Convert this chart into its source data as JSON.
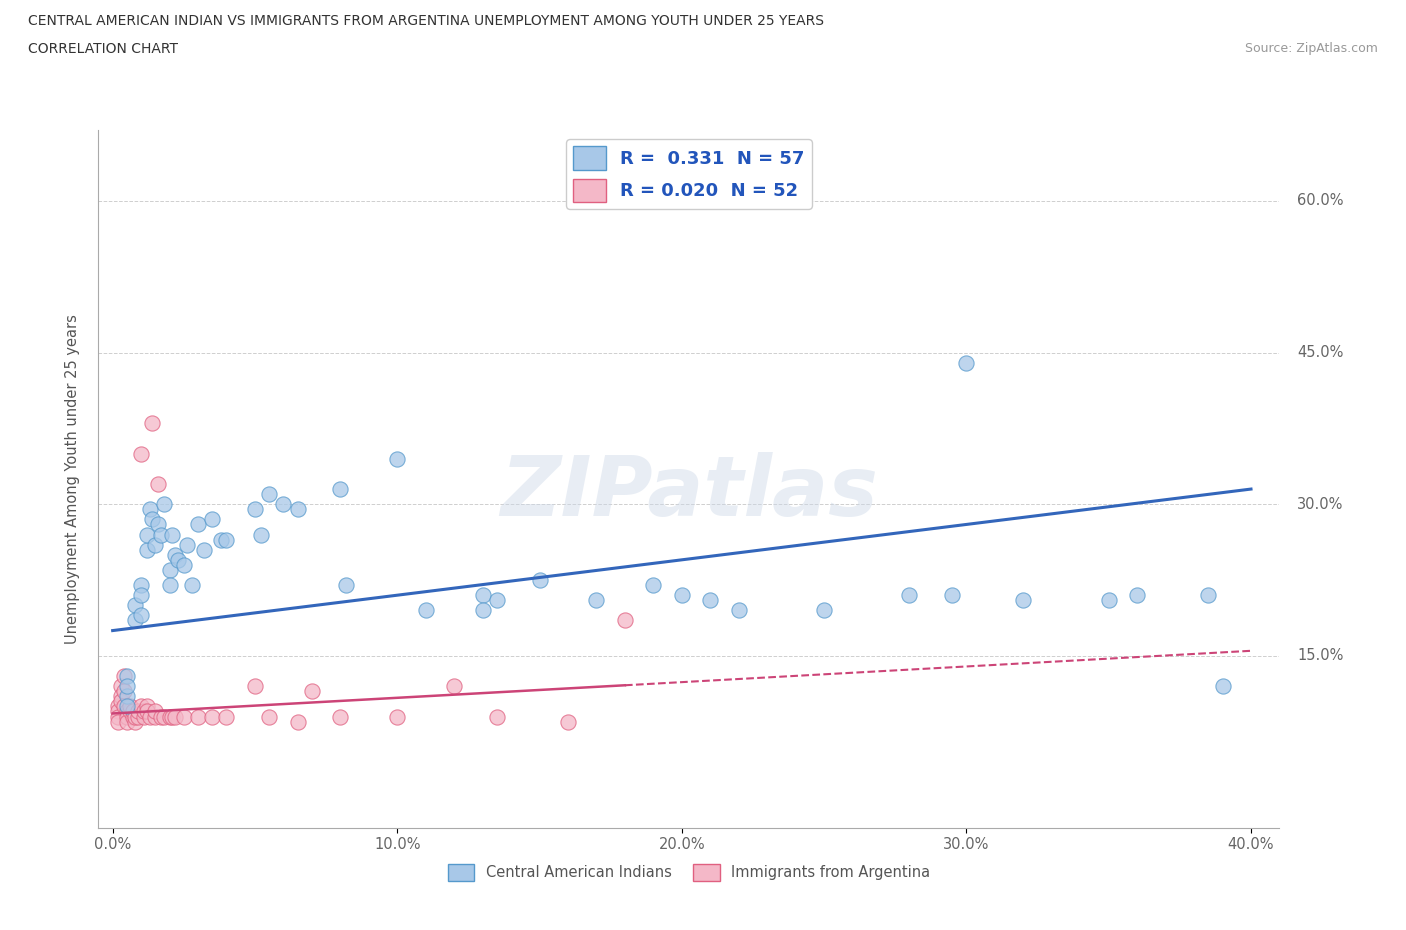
{
  "title_line1": "CENTRAL AMERICAN INDIAN VS IMMIGRANTS FROM ARGENTINA UNEMPLOYMENT AMONG YOUTH UNDER 25 YEARS",
  "title_line2": "CORRELATION CHART",
  "source": "Source: ZipAtlas.com",
  "ylabel": "Unemployment Among Youth under 25 years",
  "xlim": [
    -0.005,
    0.41
  ],
  "ylim": [
    -0.02,
    0.67
  ],
  "xtick_vals": [
    0.0,
    0.1,
    0.2,
    0.3,
    0.4
  ],
  "xtick_labels": [
    "0.0%",
    "10.0%",
    "20.0%",
    "30.0%",
    "40.0%"
  ],
  "ytick_vals": [
    0.15,
    0.3,
    0.45,
    0.6
  ],
  "ytick_labels": [
    "15.0%",
    "30.0%",
    "45.0%",
    "60.0%"
  ],
  "watermark": "ZIPatlas",
  "legend_r1": "R =  0.331  N = 57",
  "legend_r2": "R = 0.020  N = 52",
  "blue_color": "#a8c8e8",
  "blue_edge": "#5599cc",
  "pink_color": "#f4b8c8",
  "pink_edge": "#e06080",
  "line_blue_color": "#3366bb",
  "line_pink_color": "#cc4477",
  "blue_scatter": [
    [
      0.005,
      0.13
    ],
    [
      0.005,
      0.11
    ],
    [
      0.005,
      0.1
    ],
    [
      0.005,
      0.12
    ],
    [
      0.008,
      0.2
    ],
    [
      0.008,
      0.185
    ],
    [
      0.01,
      0.22
    ],
    [
      0.01,
      0.19
    ],
    [
      0.01,
      0.21
    ],
    [
      0.012,
      0.255
    ],
    [
      0.012,
      0.27
    ],
    [
      0.013,
      0.295
    ],
    [
      0.014,
      0.285
    ],
    [
      0.015,
      0.26
    ],
    [
      0.016,
      0.28
    ],
    [
      0.017,
      0.27
    ],
    [
      0.018,
      0.3
    ],
    [
      0.02,
      0.235
    ],
    [
      0.02,
      0.22
    ],
    [
      0.021,
      0.27
    ],
    [
      0.022,
      0.25
    ],
    [
      0.023,
      0.245
    ],
    [
      0.025,
      0.24
    ],
    [
      0.026,
      0.26
    ],
    [
      0.028,
      0.22
    ],
    [
      0.03,
      0.28
    ],
    [
      0.032,
      0.255
    ],
    [
      0.035,
      0.285
    ],
    [
      0.038,
      0.265
    ],
    [
      0.04,
      0.265
    ],
    [
      0.05,
      0.295
    ],
    [
      0.052,
      0.27
    ],
    [
      0.055,
      0.31
    ],
    [
      0.06,
      0.3
    ],
    [
      0.065,
      0.295
    ],
    [
      0.08,
      0.315
    ],
    [
      0.082,
      0.22
    ],
    [
      0.1,
      0.345
    ],
    [
      0.11,
      0.195
    ],
    [
      0.13,
      0.21
    ],
    [
      0.13,
      0.195
    ],
    [
      0.135,
      0.205
    ],
    [
      0.15,
      0.225
    ],
    [
      0.17,
      0.205
    ],
    [
      0.19,
      0.22
    ],
    [
      0.2,
      0.21
    ],
    [
      0.21,
      0.205
    ],
    [
      0.22,
      0.195
    ],
    [
      0.25,
      0.195
    ],
    [
      0.28,
      0.21
    ],
    [
      0.295,
      0.21
    ],
    [
      0.3,
      0.44
    ],
    [
      0.32,
      0.205
    ],
    [
      0.35,
      0.205
    ],
    [
      0.36,
      0.21
    ],
    [
      0.385,
      0.21
    ],
    [
      0.39,
      0.12
    ]
  ],
  "pink_scatter": [
    [
      0.002,
      0.1
    ],
    [
      0.002,
      0.095
    ],
    [
      0.002,
      0.09
    ],
    [
      0.002,
      0.085
    ],
    [
      0.003,
      0.12
    ],
    [
      0.003,
      0.11
    ],
    [
      0.003,
      0.105
    ],
    [
      0.004,
      0.13
    ],
    [
      0.004,
      0.115
    ],
    [
      0.004,
      0.1
    ],
    [
      0.005,
      0.095
    ],
    [
      0.005,
      0.09
    ],
    [
      0.005,
      0.085
    ],
    [
      0.006,
      0.095
    ],
    [
      0.006,
      0.1
    ],
    [
      0.007,
      0.09
    ],
    [
      0.007,
      0.095
    ],
    [
      0.008,
      0.085
    ],
    [
      0.008,
      0.09
    ],
    [
      0.009,
      0.09
    ],
    [
      0.009,
      0.095
    ],
    [
      0.01,
      0.35
    ],
    [
      0.01,
      0.1
    ],
    [
      0.011,
      0.09
    ],
    [
      0.011,
      0.095
    ],
    [
      0.012,
      0.1
    ],
    [
      0.012,
      0.095
    ],
    [
      0.013,
      0.09
    ],
    [
      0.014,
      0.38
    ],
    [
      0.015,
      0.09
    ],
    [
      0.015,
      0.095
    ],
    [
      0.016,
      0.32
    ],
    [
      0.017,
      0.09
    ],
    [
      0.018,
      0.09
    ],
    [
      0.02,
      0.09
    ],
    [
      0.021,
      0.09
    ],
    [
      0.022,
      0.09
    ],
    [
      0.025,
      0.09
    ],
    [
      0.03,
      0.09
    ],
    [
      0.035,
      0.09
    ],
    [
      0.04,
      0.09
    ],
    [
      0.05,
      0.12
    ],
    [
      0.055,
      0.09
    ],
    [
      0.065,
      0.085
    ],
    [
      0.07,
      0.115
    ],
    [
      0.08,
      0.09
    ],
    [
      0.1,
      0.09
    ],
    [
      0.12,
      0.12
    ],
    [
      0.135,
      0.09
    ],
    [
      0.16,
      0.085
    ],
    [
      0.18,
      0.185
    ]
  ],
  "blue_line_x": [
    0.0,
    0.4
  ],
  "blue_line_y": [
    0.175,
    0.315
  ],
  "pink_line_x": [
    0.0,
    0.4
  ],
  "pink_line_y": [
    0.093,
    0.155
  ],
  "pink_line_solid_end": 0.18,
  "background_color": "#ffffff",
  "grid_color": "#bbbbbb"
}
